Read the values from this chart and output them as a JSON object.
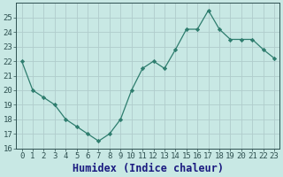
{
  "x": [
    0,
    1,
    2,
    3,
    4,
    5,
    6,
    7,
    8,
    9,
    10,
    11,
    12,
    13,
    14,
    15,
    16,
    17,
    18,
    19,
    20,
    21,
    22,
    23
  ],
  "y": [
    22,
    20,
    19.5,
    19,
    18,
    17.5,
    17,
    16.5,
    17,
    18,
    20,
    21.5,
    22,
    21.5,
    22.8,
    24.2,
    24.2,
    25.5,
    24.2,
    23.5,
    23.5,
    23.5,
    22.8,
    22.2
  ],
  "xlabel": "Humidex (Indice chaleur)",
  "xlim_min": -0.5,
  "xlim_max": 23.5,
  "ylim_min": 16,
  "ylim_max": 26,
  "yticks": [
    16,
    17,
    18,
    19,
    20,
    21,
    22,
    23,
    24,
    25
  ],
  "xticks": [
    0,
    1,
    2,
    3,
    4,
    5,
    6,
    7,
    8,
    9,
    10,
    11,
    12,
    13,
    14,
    15,
    16,
    17,
    18,
    19,
    20,
    21,
    22,
    23
  ],
  "line_color": "#2e7d6e",
  "bg_color": "#c8e8e4",
  "grid_color": "#b0cccc",
  "tick_color": "#2e5050",
  "xlabel_color": "#1a1a80",
  "tick_fontsize": 6.5,
  "xlabel_fontsize": 8.5
}
